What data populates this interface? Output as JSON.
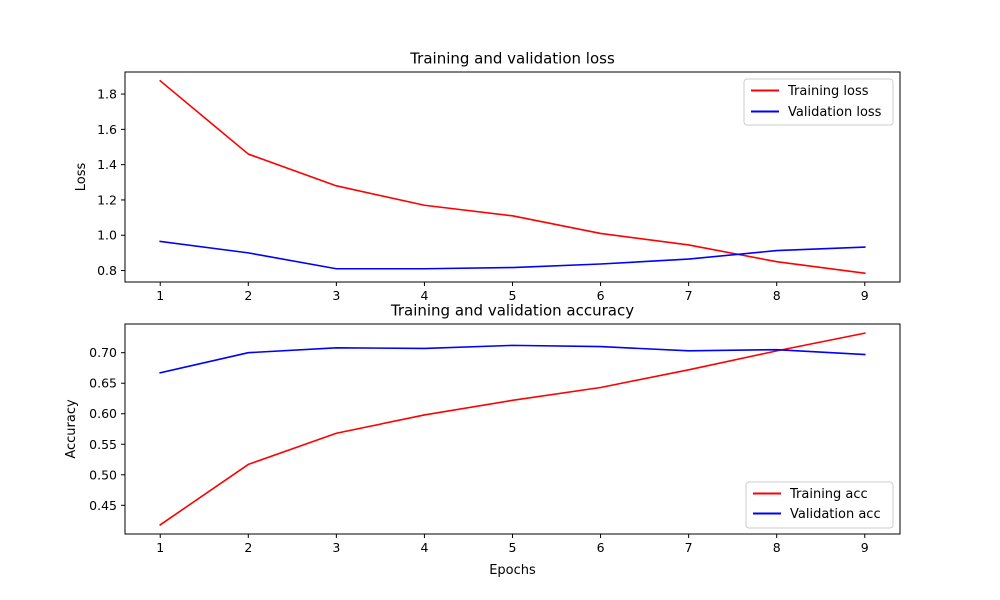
{
  "chart_data": [
    {
      "type": "line",
      "title": "Training and validation loss",
      "xlabel": "",
      "ylabel": "Loss",
      "x": [
        1,
        2,
        3,
        4,
        5,
        6,
        7,
        8,
        9
      ],
      "xticks": [
        "1",
        "2",
        "3",
        "4",
        "5",
        "6",
        "7",
        "8",
        "9"
      ],
      "yticks": [
        "0.8",
        "1.0",
        "1.2",
        "1.4",
        "1.6",
        "1.8"
      ],
      "xlim": [
        0.6,
        9.4
      ],
      "ylim": [
        0.735,
        1.925
      ],
      "grid": false,
      "legend": "top-right",
      "series": [
        {
          "name": "Training loss",
          "color": "#ff0000",
          "values": [
            1.875,
            1.46,
            1.28,
            1.17,
            1.11,
            1.01,
            0.945,
            0.85,
            0.785
          ]
        },
        {
          "name": "Validation loss",
          "color": "#0000ff",
          "values": [
            0.965,
            0.9,
            0.81,
            0.81,
            0.817,
            0.837,
            0.865,
            0.913,
            0.933
          ]
        }
      ]
    },
    {
      "type": "line",
      "title": "Training and validation accuracy",
      "xlabel": "Epochs",
      "ylabel": "Accuracy",
      "x": [
        1,
        2,
        3,
        4,
        5,
        6,
        7,
        8,
        9
      ],
      "xticks": [
        "1",
        "2",
        "3",
        "4",
        "5",
        "6",
        "7",
        "8",
        "9"
      ],
      "yticks": [
        "0.45",
        "0.50",
        "0.55",
        "0.60",
        "0.65",
        "0.70"
      ],
      "xlim": [
        0.6,
        9.4
      ],
      "ylim": [
        0.403,
        0.747
      ],
      "grid": false,
      "legend": "bottom-right",
      "series": [
        {
          "name": "Training acc",
          "color": "#ff0000",
          "values": [
            0.418,
            0.517,
            0.568,
            0.598,
            0.622,
            0.643,
            0.672,
            0.703,
            0.732
          ]
        },
        {
          "name": "Validation acc",
          "color": "#0000ff",
          "values": [
            0.667,
            0.7,
            0.708,
            0.707,
            0.712,
            0.71,
            0.703,
            0.705,
            0.697
          ]
        }
      ]
    }
  ]
}
